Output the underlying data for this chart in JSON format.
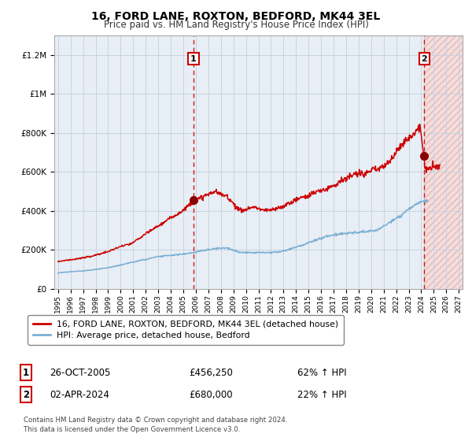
{
  "title": "16, FORD LANE, ROXTON, BEDFORD, MK44 3EL",
  "subtitle": "Price paid vs. HM Land Registry's House Price Index (HPI)",
  "ytick_values": [
    0,
    200000,
    400000,
    600000,
    800000,
    1000000,
    1200000
  ],
  "ylim": [
    0,
    1300000
  ],
  "xlim_start": 1995,
  "xlim_end": 2027,
  "sale1_date": "26-OCT-2005",
  "sale1_price": 456250,
  "sale1_hpi": "62% ↑ HPI",
  "sale1_x": 2005.82,
  "sale2_date": "02-APR-2024",
  "sale2_price": 680000,
  "sale2_hpi": "22% ↑ HPI",
  "sale2_x": 2024.25,
  "red_line_color": "#CC0000",
  "blue_line_color": "#7BAFD4",
  "sale_dot_color": "#8B0000",
  "vline_color": "#CC0000",
  "legend_label1": "16, FORD LANE, ROXTON, BEDFORD, MK44 3EL (detached house)",
  "legend_label2": "HPI: Average price, detached house, Bedford",
  "footer": "Contains HM Land Registry data © Crown copyright and database right 2024.\nThis data is licensed under the Open Government Licence v3.0.",
  "background_color": "#FFFFFF",
  "plot_bg_color": "#E8EEF5",
  "grid_color": "#C8D4E0",
  "hatch_color": "#F5CCCC"
}
